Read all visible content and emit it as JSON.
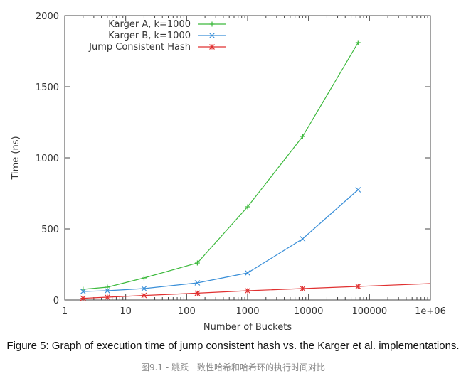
{
  "chart_data": {
    "type": "line",
    "xlabel": "Number of Buckets",
    "ylabel": "Time (ns)",
    "xscale": "log",
    "xlim": [
      1,
      1000000
    ],
    "ylim": [
      0,
      2000
    ],
    "xticks": [
      1,
      10,
      100,
      1000,
      10000,
      100000,
      1000000
    ],
    "xtick_labels": [
      "1",
      "10",
      "100",
      "1000",
      "10000",
      "100000",
      "1e+06"
    ],
    "yticks": [
      0,
      500,
      1000,
      1500,
      2000
    ],
    "ytick_labels": [
      "0",
      "500",
      "1000",
      "1500",
      "2000"
    ],
    "legend_position": "top-left",
    "grid": false,
    "series": [
      {
        "name": "Karger A, k=1000",
        "color": "#3cb93c",
        "marker": "plus",
        "x": [
          2,
          5,
          20,
          150,
          1000,
          8000,
          65000
        ],
        "y": [
          75,
          90,
          155,
          260,
          655,
          1150,
          1810
        ]
      },
      {
        "name": "Karger B, k=1000",
        "color": "#3a8fd8",
        "marker": "cross",
        "x": [
          2,
          5,
          20,
          150,
          1000,
          8000,
          65000
        ],
        "y": [
          60,
          65,
          80,
          120,
          190,
          430,
          775
        ]
      },
      {
        "name": "Jump Consistent Hash",
        "color": "#e03030",
        "marker": "star",
        "x": [
          2,
          5,
          20,
          150,
          1000,
          8000,
          65000,
          1000000
        ],
        "y": [
          12,
          20,
          32,
          48,
          65,
          80,
          95,
          115
        ]
      }
    ]
  },
  "caption": "Figure 5: Graph of execution time of jump consistent hash vs. the Karger et al. implementations.",
  "subcaption": "图9.1 - 跳跃一致性哈希和哈希环的执行时间对比"
}
